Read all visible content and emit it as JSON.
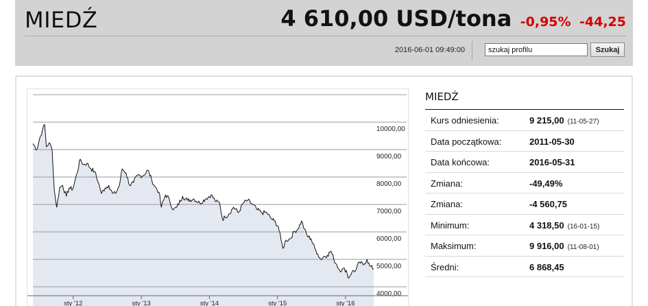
{
  "header": {
    "name": "MIEDŹ",
    "price": "4 610,00 USD/tona",
    "change_pct": "-0,95%",
    "change_abs": "-44,25",
    "datetime": "2016-06-01 09:49:00",
    "search_value": "szukaj profilu",
    "search_button": "Szukaj"
  },
  "info": {
    "title": "MIEDŹ",
    "rows": [
      {
        "label": "Kurs odniesienia:",
        "value": "9 215,00",
        "date": "(11-05-27)"
      },
      {
        "label": "Data początkowa:",
        "value": "2011-05-30",
        "date": ""
      },
      {
        "label": "Data końcowa:",
        "value": "2016-05-31",
        "date": ""
      },
      {
        "label": "Zmiana:",
        "value": "-49,49%",
        "date": ""
      },
      {
        "label": "Zmiana:",
        "value": "-4 560,75",
        "date": ""
      },
      {
        "label": "Minimum:",
        "value": "4 318,50",
        "date": "(16-01-15)"
      },
      {
        "label": "Maksimum:",
        "value": "9 916,00",
        "date": "(11-08-01)"
      },
      {
        "label": "Średni:",
        "value": "6 868,45",
        "date": ""
      }
    ]
  },
  "colors": {
    "line": "#111111",
    "area_fill": "#e4e8f1",
    "grid": "#9a9a9a",
    "negative": "#d40000"
  },
  "chart_data": {
    "type": "area",
    "title": "",
    "xlabel": "",
    "ylabel": "",
    "x_start": "2011-05-30",
    "x_end": "2016-05-31",
    "ylim": [
      3700,
      11000
    ],
    "y_ticks": [
      {
        "value": 4000,
        "label": "4000,00"
      },
      {
        "value": 5000,
        "label": "5000,00"
      },
      {
        "value": 6000,
        "label": "6000,00"
      },
      {
        "value": 7000,
        "label": "7000,00"
      },
      {
        "value": 8000,
        "label": "8000,00"
      },
      {
        "value": 9000,
        "label": "9000,00"
      },
      {
        "value": 10000,
        "label": "10000,00"
      }
    ],
    "x_ticks": [
      {
        "date": "2012-01-01",
        "label": "sty '12"
      },
      {
        "date": "2013-01-01",
        "label": "sty '13"
      },
      {
        "date": "2014-01-01",
        "label": "sty '14"
      },
      {
        "date": "2015-01-01",
        "label": "sty '15"
      },
      {
        "date": "2016-01-01",
        "label": "sty '16"
      }
    ],
    "grid": true,
    "series": [
      {
        "values": [
          [
            "2011-05-30",
            9215
          ],
          [
            "2011-06-20",
            9000
          ],
          [
            "2011-07-05",
            9400
          ],
          [
            "2011-07-20",
            9700
          ],
          [
            "2011-08-01",
            9916
          ],
          [
            "2011-08-10",
            9100
          ],
          [
            "2011-08-25",
            9250
          ],
          [
            "2011-09-10",
            9000
          ],
          [
            "2011-09-22",
            7500
          ],
          [
            "2011-10-05",
            6900
          ],
          [
            "2011-10-20",
            7600
          ],
          [
            "2011-11-05",
            7700
          ],
          [
            "2011-11-25",
            7300
          ],
          [
            "2011-12-10",
            7600
          ],
          [
            "2011-12-30",
            7560
          ],
          [
            "2012-01-20",
            8100
          ],
          [
            "2012-02-08",
            8650
          ],
          [
            "2012-02-25",
            8450
          ],
          [
            "2012-03-15",
            8500
          ],
          [
            "2012-04-05",
            8300
          ],
          [
            "2012-04-25",
            8200
          ],
          [
            "2012-05-15",
            7800
          ],
          [
            "2012-06-01",
            7400
          ],
          [
            "2012-06-20",
            7600
          ],
          [
            "2012-07-10",
            7700
          ],
          [
            "2012-07-30",
            7400
          ],
          [
            "2012-08-15",
            7400
          ],
          [
            "2012-09-05",
            7700
          ],
          [
            "2012-09-20",
            8300
          ],
          [
            "2012-10-10",
            8150
          ],
          [
            "2012-10-30",
            7700
          ],
          [
            "2012-11-20",
            7800
          ],
          [
            "2012-12-10",
            8050
          ],
          [
            "2013-01-10",
            8050
          ],
          [
            "2013-02-05",
            8250
          ],
          [
            "2013-02-25",
            7900
          ],
          [
            "2013-03-15",
            7650
          ],
          [
            "2013-04-05",
            7450
          ],
          [
            "2013-04-18",
            6900
          ],
          [
            "2013-05-10",
            7350
          ],
          [
            "2013-05-30",
            7200
          ],
          [
            "2013-06-20",
            6800
          ],
          [
            "2013-07-10",
            6900
          ],
          [
            "2013-08-10",
            7300
          ],
          [
            "2013-09-05",
            7150
          ],
          [
            "2013-10-10",
            7200
          ],
          [
            "2013-11-10",
            7050
          ],
          [
            "2013-12-10",
            7200
          ],
          [
            "2014-01-10",
            7350
          ],
          [
            "2014-02-05",
            7100
          ],
          [
            "2014-02-25",
            7050
          ],
          [
            "2014-03-12",
            6450
          ],
          [
            "2014-03-25",
            6550
          ],
          [
            "2014-04-15",
            6650
          ],
          [
            "2014-05-10",
            6900
          ],
          [
            "2014-06-05",
            6700
          ],
          [
            "2014-07-01",
            7050
          ],
          [
            "2014-07-25",
            7150
          ],
          [
            "2014-08-20",
            7000
          ],
          [
            "2014-09-15",
            6800
          ],
          [
            "2014-10-10",
            6700
          ],
          [
            "2014-11-05",
            6700
          ],
          [
            "2014-11-25",
            6500
          ],
          [
            "2014-12-15",
            6400
          ],
          [
            "2015-01-05",
            6200
          ],
          [
            "2015-01-20",
            5700
          ],
          [
            "2015-01-30",
            5400
          ],
          [
            "2015-02-15",
            5700
          ],
          [
            "2015-03-10",
            5750
          ],
          [
            "2015-03-30",
            6000
          ],
          [
            "2015-04-20",
            6100
          ],
          [
            "2015-05-10",
            6400
          ],
          [
            "2015-05-25",
            6100
          ],
          [
            "2015-06-10",
            5850
          ],
          [
            "2015-06-30",
            5750
          ],
          [
            "2015-07-20",
            5400
          ],
          [
            "2015-08-05",
            5200
          ],
          [
            "2015-08-20",
            5000
          ],
          [
            "2015-09-05",
            5100
          ],
          [
            "2015-09-25",
            5150
          ],
          [
            "2015-10-15",
            5300
          ],
          [
            "2015-10-30",
            5000
          ],
          [
            "2015-11-15",
            4800
          ],
          [
            "2015-11-30",
            4600
          ],
          [
            "2015-12-15",
            4650
          ],
          [
            "2016-01-05",
            4600
          ],
          [
            "2016-01-15",
            4318.5
          ],
          [
            "2016-02-05",
            4550
          ],
          [
            "2016-02-25",
            4600
          ],
          [
            "2016-03-15",
            4900
          ],
          [
            "2016-04-05",
            4800
          ],
          [
            "2016-04-25",
            5000
          ],
          [
            "2016-05-10",
            4750
          ],
          [
            "2016-05-31",
            4655
          ]
        ]
      }
    ]
  }
}
